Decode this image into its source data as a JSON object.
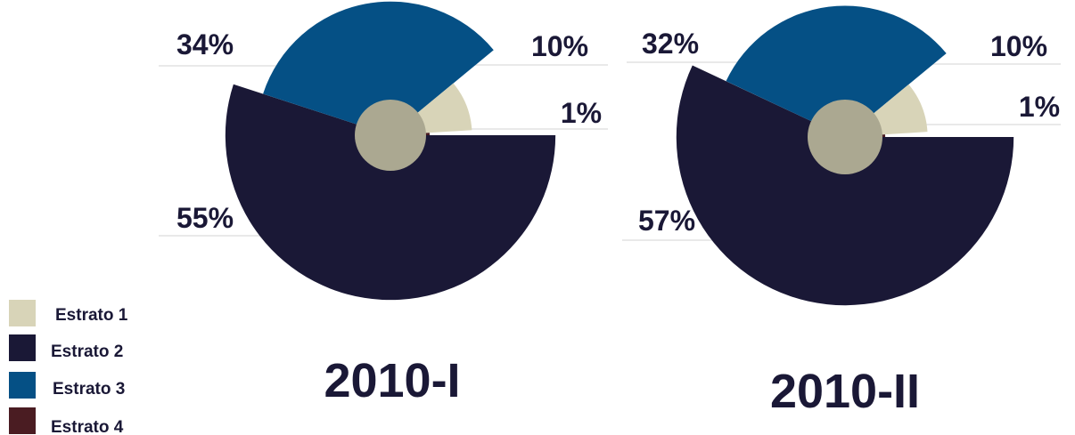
{
  "chart_data": [
    {
      "type": "pie",
      "title": "2010-I",
      "categories": [
        "Estrato 1",
        "Estrato 2",
        "Estrato 3",
        "Estrato 4"
      ],
      "values": [
        10,
        55,
        34,
        1
      ],
      "value_labels": [
        "10%",
        "55%",
        "34%",
        "1%"
      ],
      "colors": [
        "#d8d4b8",
        "#1a1836",
        "#055085",
        "#4a1c22"
      ]
    },
    {
      "type": "pie",
      "title": "2010-II",
      "categories": [
        "Estrato 1",
        "Estrato 2",
        "Estrato 3",
        "Estrato 4"
      ],
      "values": [
        10,
        57,
        32,
        1
      ],
      "value_labels": [
        "10%",
        "57%",
        "32%",
        "1%"
      ],
      "colors": [
        "#d8d4b8",
        "#1a1836",
        "#055085",
        "#4a1c22"
      ]
    }
  ],
  "legend": {
    "position": "bottom-left",
    "items": [
      {
        "label": "Estrato 1",
        "color": "#d8d4b8"
      },
      {
        "label": "Estrato 2",
        "color": "#1a1836"
      },
      {
        "label": "Estrato 3",
        "color": "#055085"
      },
      {
        "label": "Estrato 4",
        "color": "#4a1c22"
      }
    ]
  },
  "center_color": "#aba891"
}
